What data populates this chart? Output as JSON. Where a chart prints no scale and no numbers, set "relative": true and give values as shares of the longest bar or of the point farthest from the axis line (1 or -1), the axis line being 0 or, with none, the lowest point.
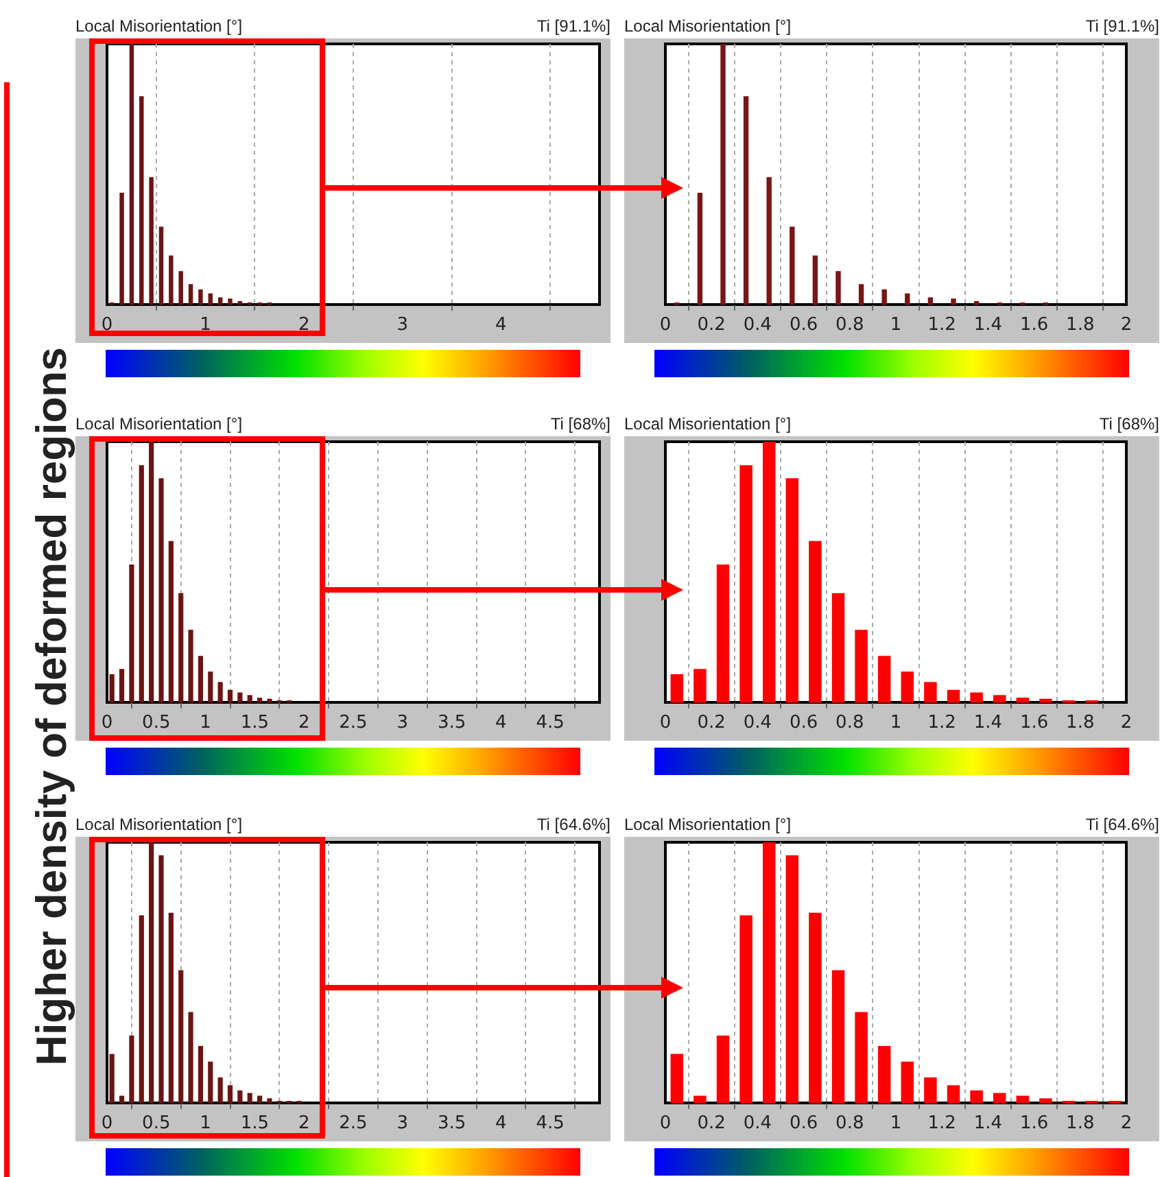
{
  "chart_data": [
    {
      "type": "bar",
      "title": "Local Misorientation [°]",
      "subtitle": "Ti [91.1%]",
      "annotations": [
        "Higher density of deformed regions"
      ],
      "relative": true,
      "x": [
        0.05,
        0.15,
        0.25,
        0.35,
        0.45,
        0.55,
        0.65,
        0.75,
        0.85,
        0.95,
        1.05,
        1.15,
        1.25,
        1.35,
        1.45,
        1.55,
        1.65
      ],
      "values": [
        0.01,
        0.43,
        1,
        0.8,
        0.49,
        0.3,
        0.19,
        0.13,
        0.08,
        0.06,
        0.045,
        0.03,
        0.025,
        0.015,
        0.01,
        0.01,
        0.01
      ],
      "color": "#6b1414",
      "xlim": [
        0,
        5
      ],
      "xticks": [
        0,
        1,
        2,
        3,
        4
      ],
      "grid": "x"
    },
    {
      "type": "bar",
      "title": "Local Misorientation [°]",
      "subtitle": "Ti [91.1%]",
      "relative": true,
      "x": [
        0.05,
        0.15,
        0.25,
        0.35,
        0.45,
        0.55,
        0.65,
        0.75,
        0.85,
        0.95,
        1.05,
        1.15,
        1.25,
        1.35,
        1.45,
        1.55,
        1.65
      ],
      "values": [
        0.01,
        0.43,
        1,
        0.8,
        0.49,
        0.3,
        0.19,
        0.13,
        0.08,
        0.06,
        0.045,
        0.03,
        0.025,
        0.015,
        0.01,
        0.01,
        0.01
      ],
      "color": "#7a1515",
      "xlim": [
        0,
        2
      ],
      "xticks": [
        0,
        0.2,
        0.4,
        0.6,
        0.8,
        1,
        1.2,
        1.4,
        1.6,
        1.8,
        2
      ],
      "grid": "x"
    },
    {
      "type": "bar",
      "title": "Local Misorientation [°]",
      "subtitle": "Ti [68%]",
      "relative": true,
      "x": [
        0.05,
        0.15,
        0.25,
        0.35,
        0.45,
        0.55,
        0.65,
        0.75,
        0.85,
        0.95,
        1.05,
        1.15,
        1.25,
        1.35,
        1.45,
        1.55,
        1.65,
        1.75,
        1.85
      ],
      "values": [
        0.11,
        0.13,
        0.53,
        0.91,
        1,
        0.86,
        0.62,
        0.42,
        0.28,
        0.18,
        0.12,
        0.08,
        0.05,
        0.04,
        0.03,
        0.02,
        0.016,
        0.01,
        0.01
      ],
      "color": "#6b1414",
      "xlim": [
        0,
        5
      ],
      "xticks": [
        0,
        0.5,
        1,
        1.5,
        2,
        2.5,
        3,
        3.5,
        4,
        4.5
      ],
      "grid": "x"
    },
    {
      "type": "bar",
      "title": "Local Misorientation [°]",
      "subtitle": "Ti [68%]",
      "relative": true,
      "x": [
        0.05,
        0.15,
        0.25,
        0.35,
        0.45,
        0.55,
        0.65,
        0.75,
        0.85,
        0.95,
        1.05,
        1.15,
        1.25,
        1.35,
        1.45,
        1.55,
        1.65,
        1.75,
        1.85
      ],
      "values": [
        0.11,
        0.13,
        0.53,
        0.91,
        1,
        0.86,
        0.62,
        0.42,
        0.28,
        0.18,
        0.12,
        0.08,
        0.05,
        0.04,
        0.03,
        0.02,
        0.016,
        0.01,
        0.01
      ],
      "color": "#ff0000",
      "xlim": [
        0,
        2
      ],
      "xticks": [
        0,
        0.2,
        0.4,
        0.6,
        0.8,
        1,
        1.2,
        1.4,
        1.6,
        1.8,
        2
      ],
      "grid": "x"
    },
    {
      "type": "bar",
      "title": "Local Misorientation [°]",
      "subtitle": "Ti [64.6%]",
      "relative": true,
      "x": [
        0.05,
        0.15,
        0.25,
        0.35,
        0.45,
        0.55,
        0.65,
        0.75,
        0.85,
        0.95,
        1.05,
        1.15,
        1.25,
        1.35,
        1.45,
        1.55,
        1.65,
        1.75,
        1.85,
        1.95
      ],
      "values": [
        0.19,
        0.03,
        0.26,
        0.72,
        1,
        0.95,
        0.73,
        0.51,
        0.35,
        0.22,
        0.16,
        0.1,
        0.07,
        0.05,
        0.04,
        0.03,
        0.02,
        0.01,
        0.01,
        0.01
      ],
      "color": "#6b1414",
      "xlim": [
        0,
        5
      ],
      "xticks": [
        0,
        0.5,
        1,
        1.5,
        2,
        2.5,
        3,
        3.5,
        4,
        4.5
      ],
      "grid": "x"
    },
    {
      "type": "bar",
      "title": "Local Misorientation [°]",
      "subtitle": "Ti [64.6%]",
      "relative": true,
      "x": [
        0.05,
        0.15,
        0.25,
        0.35,
        0.45,
        0.55,
        0.65,
        0.75,
        0.85,
        0.95,
        1.05,
        1.15,
        1.25,
        1.35,
        1.45,
        1.55,
        1.65,
        1.75,
        1.85,
        1.95
      ],
      "values": [
        0.19,
        0.03,
        0.26,
        0.72,
        1,
        0.95,
        0.73,
        0.51,
        0.35,
        0.22,
        0.16,
        0.1,
        0.07,
        0.05,
        0.04,
        0.03,
        0.02,
        0.01,
        0.01,
        0.01
      ],
      "color": "#ff0000",
      "xlim": [
        0,
        2
      ],
      "xticks": [
        0,
        0.2,
        0.4,
        0.6,
        0.8,
        1,
        1.2,
        1.4,
        1.6,
        1.8,
        2
      ],
      "grid": "x"
    }
  ]
}
